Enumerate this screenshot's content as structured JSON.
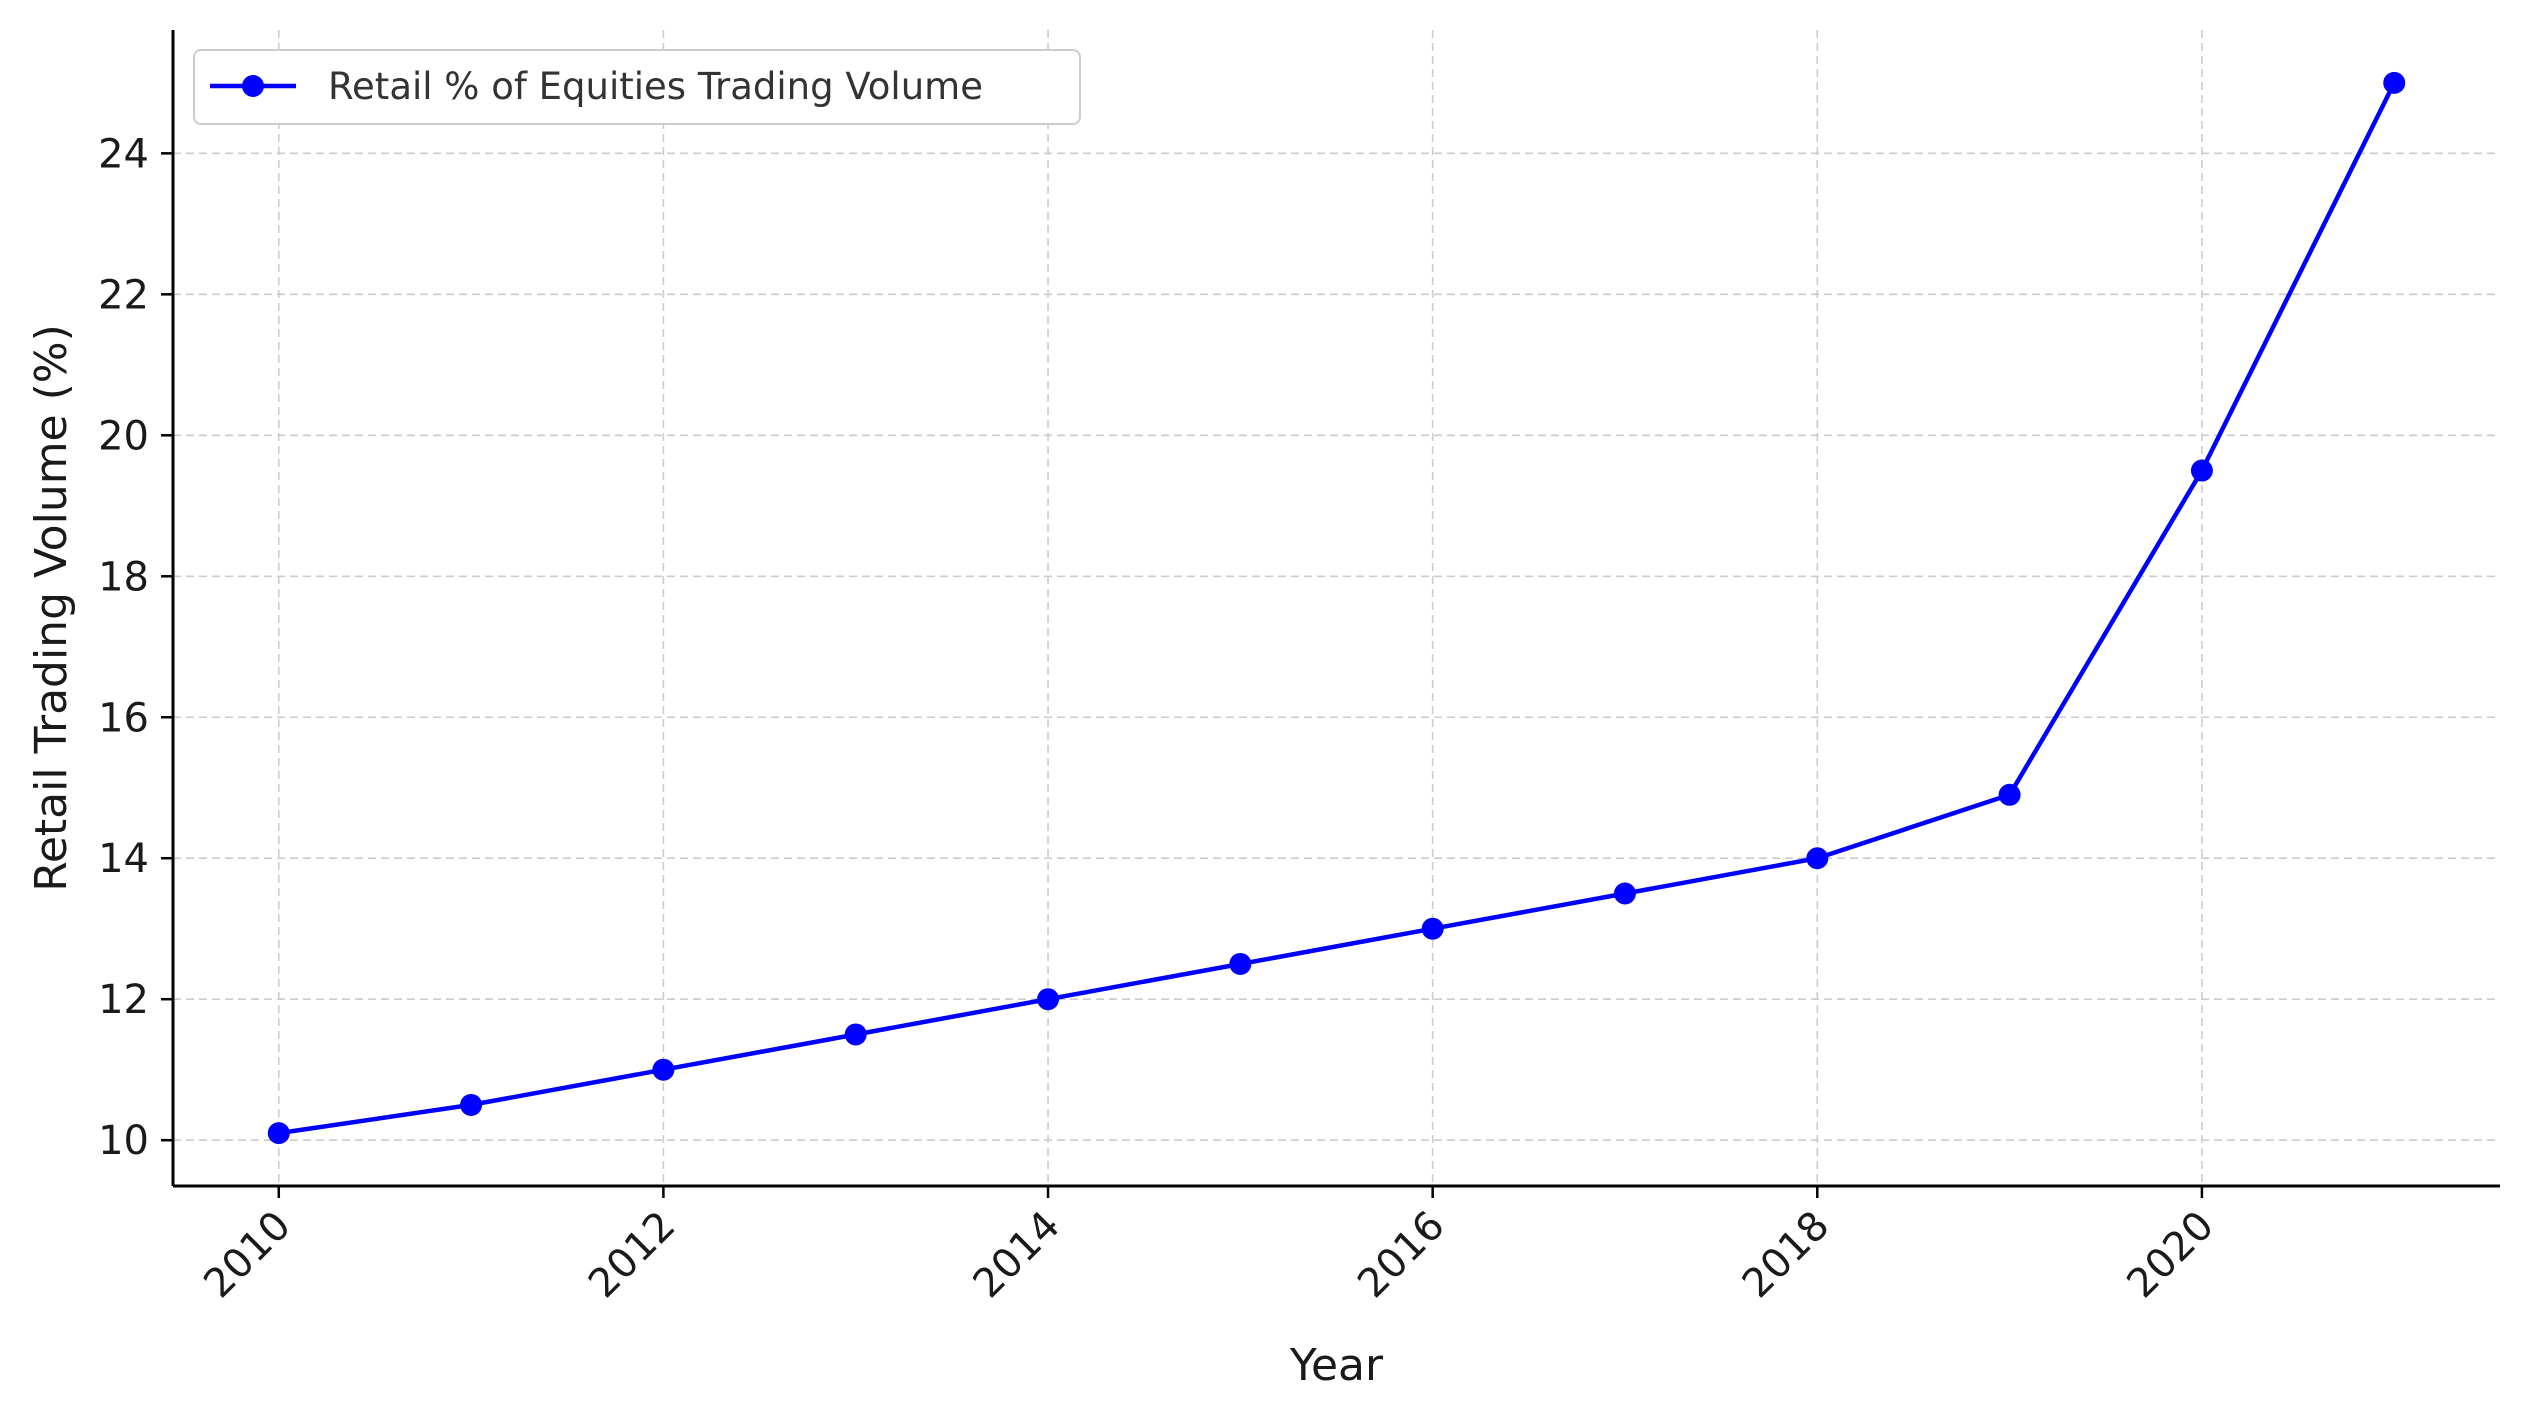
{
  "chart_data": {
    "type": "line",
    "title": "",
    "xlabel": "Year",
    "ylabel": "Retail Trading Volume (%)",
    "x": [
      2010,
      2011,
      2012,
      2013,
      2014,
      2015,
      2016,
      2017,
      2018,
      2019,
      2020,
      2021
    ],
    "series": [
      {
        "name": "Retail % of Equities Trading Volume",
        "color": "#0000ff",
        "marker": "circle",
        "values": [
          10.1,
          10.5,
          11.0,
          11.5,
          12.0,
          12.5,
          13.0,
          13.5,
          14.0,
          14.9,
          19.5,
          25.0
        ]
      }
    ],
    "xlim": [
      2009.45,
      2021.55
    ],
    "ylim": [
      9.35,
      25.75
    ],
    "xticks": [
      2010,
      2012,
      2014,
      2016,
      2018,
      2020
    ],
    "yticks": [
      10,
      12,
      14,
      16,
      18,
      20,
      22,
      24
    ],
    "grid": true,
    "legend_position": "top-left"
  }
}
